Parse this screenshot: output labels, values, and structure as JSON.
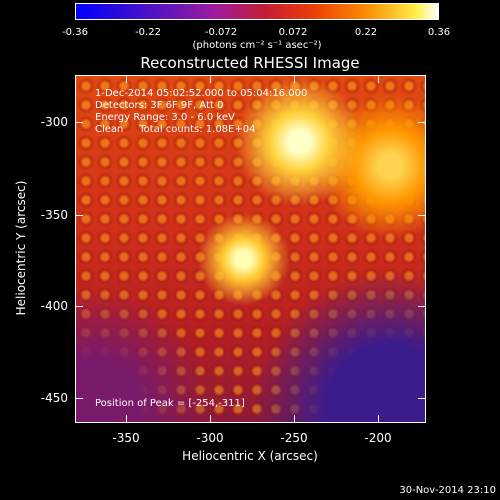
{
  "colorbar": {
    "ticks": [
      "-0.36",
      "-0.22",
      "-0.072",
      "0.072",
      "0.22",
      "0.36"
    ],
    "units": "(photons cm⁻² s⁻¹ asec⁻²)"
  },
  "title": "Reconstructed RHESSI Image",
  "info": {
    "time": "1-Dec-2014 05:02:52.000 to 05:04:16.000",
    "detectors": "Detectors: 3F 6F 9F, Att 0",
    "energy": "Energy Range: 3.0 - 6.0 keV",
    "clean": "Clean     Total counts: 1.08E+04",
    "peak": "Position of Peak = [-254,-311]"
  },
  "axes": {
    "x_label": "Heliocentric X (arcsec)",
    "y_label": "Heliocentric Y (arcsec)",
    "x_ticks": [
      "-350",
      "-300",
      "-250",
      "-200"
    ],
    "y_ticks": [
      "-300",
      "-350",
      "-400",
      "-450"
    ]
  },
  "timestamp": "30-Nov-2014 23:10",
  "colors": {
    "background": "#000000",
    "foreground": "#ffffff"
  }
}
